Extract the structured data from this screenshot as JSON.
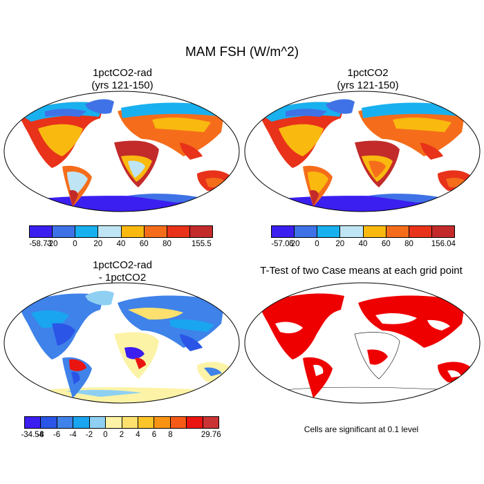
{
  "title": "MAM FSH (W/m^2)",
  "panels": [
    {
      "title1": "1pctCO2-rad",
      "title2": "(yrs 121-150)"
    },
    {
      "title1": "1pctCO2",
      "title2": "(yrs 121-150)"
    },
    {
      "title1": "1pctCO2-rad",
      "title2": "- 1pctCO2"
    },
    {
      "title1": "T-Test of two Case means at each grid point"
    }
  ],
  "colorbars": {
    "top": {
      "colors": [
        "#3b1ff0",
        "#3f72e6",
        "#19b0ef",
        "#bfe5f4",
        "#f9b90f",
        "#f56d1b",
        "#e8321a",
        "#c32b2b"
      ],
      "left_labels": [
        "-58.73",
        "-20",
        "0",
        "20",
        "40",
        "60",
        "80",
        "155.5"
      ],
      "right_labels": [
        "-57.05",
        "-20",
        "0",
        "20",
        "40",
        "60",
        "80",
        "156.04"
      ]
    },
    "diff": {
      "colors": [
        "#3b1ff0",
        "#2a55e7",
        "#3f82e9",
        "#19a5ef",
        "#8fd0f2",
        "#fdf3a6",
        "#fde06e",
        "#fbc52a",
        "#f99313",
        "#f55a16",
        "#ea1410",
        "#cb3434"
      ],
      "labels": [
        "-34.54",
        "-8",
        "-6",
        "-4",
        "-2",
        "0",
        "2",
        "4",
        "6",
        "8",
        "29.76"
      ]
    }
  },
  "significance_note": "Cells are significant at 0.1 level",
  "significance_color": "#ee0000"
}
